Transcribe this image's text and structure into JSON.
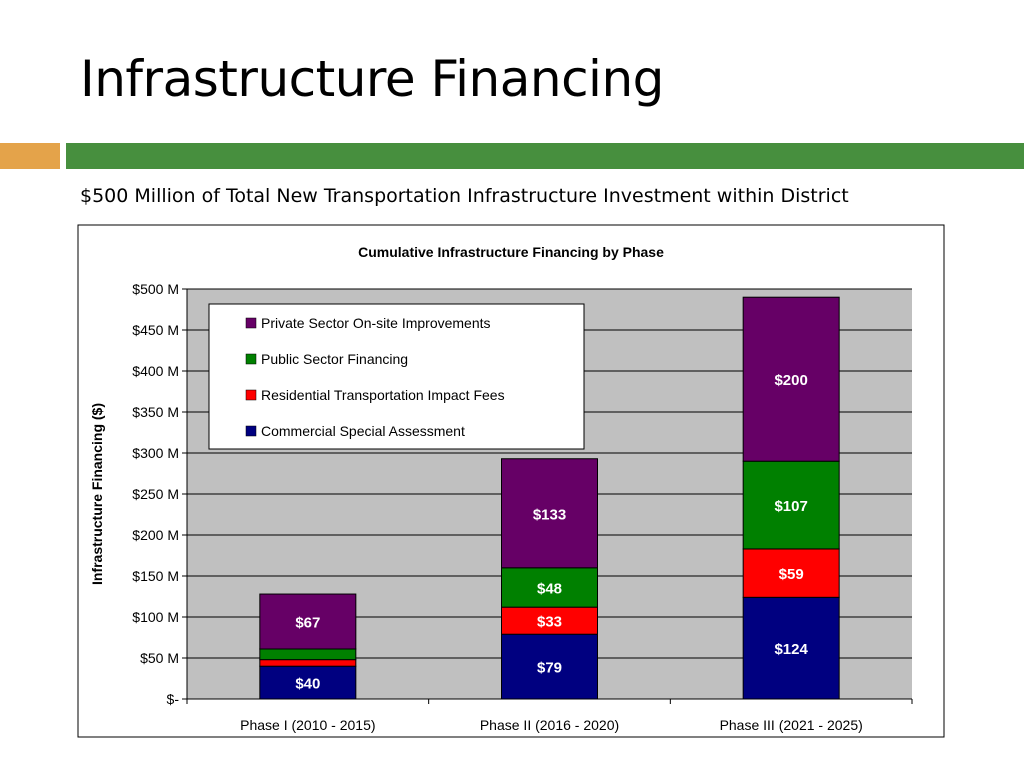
{
  "slide": {
    "title": "Infrastructure Financing",
    "subtitle": "$500 Million of Total New Transportation Infrastructure Investment within District",
    "accent_colors": {
      "orange": "#e4a34a",
      "green": "#478f3e"
    }
  },
  "chart_data": {
    "type": "bar",
    "stacked": true,
    "title": "Cumulative Infrastructure Financing by Phase",
    "xlabel": "",
    "ylabel": "Infrastructure Financing ($)",
    "ylim": [
      0,
      500
    ],
    "yticks": [
      0,
      50,
      100,
      150,
      200,
      250,
      300,
      350,
      400,
      450,
      500
    ],
    "ytick_labels": [
      "$-",
      "$50 M",
      "$100 M",
      "$150 M",
      "$200 M",
      "$250 M",
      "$300 M",
      "$350 M",
      "$400 M",
      "$450 M",
      "$500 M"
    ],
    "grid": true,
    "legend_placement": "top-left",
    "categories": [
      "Phase I (2010 - 2015)",
      "Phase II (2016 - 2020)",
      "Phase III (2021 - 2025)"
    ],
    "series": [
      {
        "name": "Commercial Special Assessment",
        "color": "#000080",
        "values": [
          40,
          79,
          124
        ],
        "labels": [
          "$40",
          "$79",
          "$124"
        ]
      },
      {
        "name": "Residential Transportation Impact Fees",
        "color": "#ff0000",
        "values": [
          8,
          33,
          59
        ],
        "labels": [
          "",
          "$33",
          "$59"
        ]
      },
      {
        "name": "Public Sector Financing",
        "color": "#008000",
        "values": [
          13,
          48,
          107
        ],
        "labels": [
          "",
          "$48",
          "$107"
        ]
      },
      {
        "name": "Private Sector On-site Improvements",
        "color": "#660066",
        "values": [
          67,
          133,
          200
        ],
        "labels": [
          "$67",
          "$133",
          "$200"
        ]
      }
    ],
    "plot_background": "#c0c0c0"
  }
}
